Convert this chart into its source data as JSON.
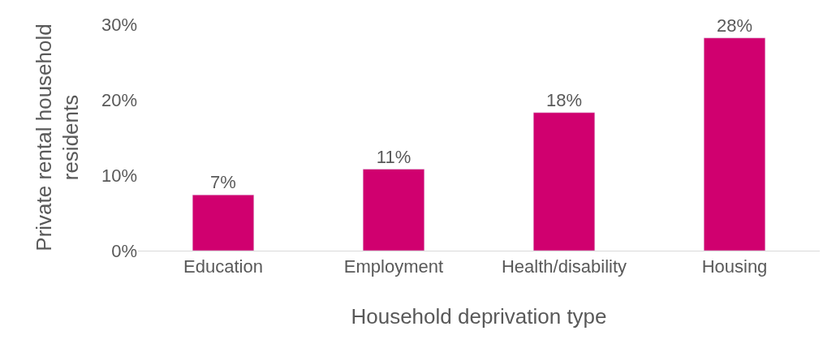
{
  "chart_data": {
    "type": "bar",
    "categories": [
      "Education",
      "Employment",
      "Health/disability",
      "Housing"
    ],
    "values": [
      7.4,
      10.8,
      18.3,
      28.2
    ],
    "value_labels": [
      "7%",
      "11%",
      "18%",
      "28%"
    ],
    "color": "#d0006f",
    "ylim": [
      0,
      30
    ],
    "yticks": [
      {
        "value": 0,
        "label": "0%"
      },
      {
        "value": 10,
        "label": "10%"
      },
      {
        "value": 20,
        "label": "20%"
      },
      {
        "value": 30,
        "label": "30%"
      }
    ],
    "xlabel": "Household deprivation type",
    "ylabel": "Private rental household residents"
  }
}
